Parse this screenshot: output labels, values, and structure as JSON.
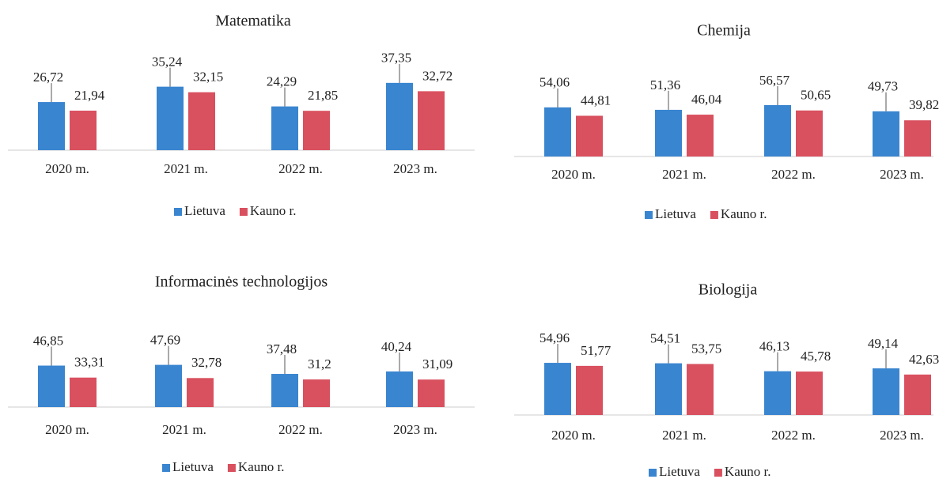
{
  "chart_data": [
    {
      "type": "bar",
      "title": "Matematika",
      "categories": [
        "2020 m.",
        "2021 m.",
        "2022 m.",
        "2023 m."
      ],
      "series": [
        {
          "name": "Lietuva",
          "color": "#3a85d0",
          "values": [
            26.72,
            35.24,
            24.29,
            37.35
          ],
          "value_labels": [
            "26,72",
            "35,24",
            "24,29",
            "37,35"
          ]
        },
        {
          "name": "Kauno r.",
          "color": "#d9505f",
          "values": [
            21.94,
            32.15,
            21.85,
            32.72
          ],
          "value_labels": [
            "21,94",
            "32,15",
            "21,85",
            "32,72"
          ]
        }
      ]
    },
    {
      "type": "bar",
      "title": "Chemija",
      "categories": [
        "2020 m.",
        "2021 m.",
        "2022 m.",
        "2023 m."
      ],
      "series": [
        {
          "name": "Lietuva",
          "color": "#3a85d0",
          "values": [
            54.06,
            51.36,
            56.57,
            49.73
          ],
          "value_labels": [
            "54,06",
            "51,36",
            "56,57",
            "49,73"
          ]
        },
        {
          "name": "Kauno r.",
          "color": "#d9505f",
          "values": [
            44.81,
            46.04,
            50.65,
            39.82
          ],
          "value_labels": [
            "44,81",
            "46,04",
            "50,65",
            "39,82"
          ]
        }
      ]
    },
    {
      "type": "bar",
      "title": "Informacinės technologijos",
      "categories": [
        "2020 m.",
        "2021 m.",
        "2022 m.",
        "2023 m."
      ],
      "series": [
        {
          "name": "Lietuva",
          "color": "#3a85d0",
          "values": [
            46.85,
            47.69,
            37.48,
            40.24
          ],
          "value_labels": [
            "46,85",
            "47,69",
            "37,48",
            "40,24"
          ]
        },
        {
          "name": "Kauno r.",
          "color": "#d9505f",
          "values": [
            33.31,
            32.78,
            31.2,
            31.09
          ],
          "value_labels": [
            "33,31",
            "32,78",
            "31,2",
            "31,09"
          ]
        }
      ]
    },
    {
      "type": "bar",
      "title": "Biologija",
      "categories": [
        "2020 m.",
        "2021 m.",
        "2022 m.",
        "2023 m."
      ],
      "series": [
        {
          "name": "Lietuva",
          "color": "#3a85d0",
          "values": [
            54.96,
            54.51,
            46.13,
            49.14
          ],
          "value_labels": [
            "54,96",
            "54,51",
            "46,13",
            "49,14"
          ]
        },
        {
          "name": "Kauno r.",
          "color": "#d9505f",
          "values": [
            51.77,
            53.75,
            45.78,
            42.63
          ],
          "value_labels": [
            "51,77",
            "53,75",
            "45,78",
            "42,63"
          ]
        }
      ]
    }
  ]
}
